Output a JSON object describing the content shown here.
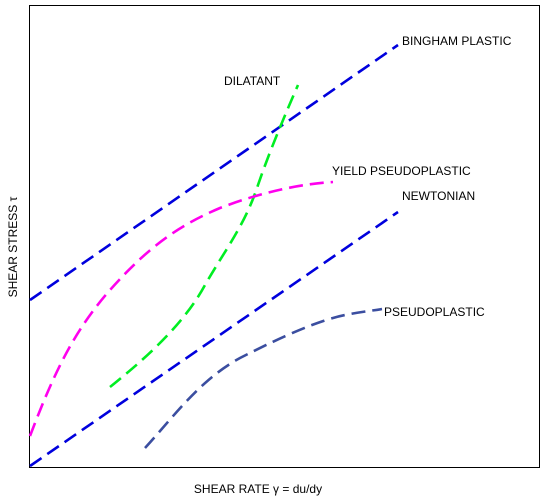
{
  "curves": [
    {
      "id": "bingham-plastic",
      "label": "BINGHAM PLASTIC",
      "color": "#0000dd"
    },
    {
      "id": "dilatant",
      "label": "DILATANT",
      "color": "#00ee22"
    },
    {
      "id": "yield-pseudoplastic",
      "label": "YIELD PSEUDOPLASTIC",
      "color": "#ff00ee"
    },
    {
      "id": "newtonian",
      "label": "NEWTONIAN",
      "color": "#0000dd"
    },
    {
      "id": "pseudoplastic",
      "label": "PSEUDOPLASTIC",
      "color": "#3b4ea0"
    }
  ],
  "axes": {
    "xlabel": "SHEAR RATE γ = du/dy",
    "ylabel": "SHEAR STRESS τ",
    "frame_color": "#000000"
  }
}
